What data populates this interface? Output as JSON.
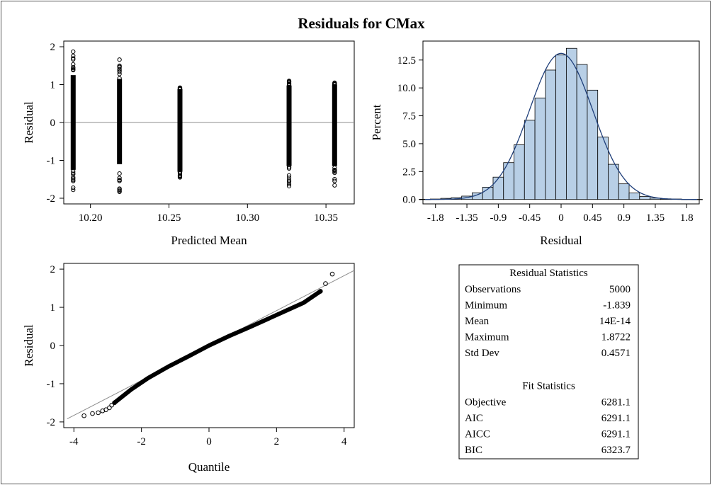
{
  "title": "Residuals for CMax",
  "colors": {
    "bar_fill": "#b8cfe6",
    "curve": "#1f3f7a",
    "refline": "#8c8c8c",
    "marker": "#000000"
  },
  "chart_data": [
    {
      "type": "scatter",
      "xlabel": "Predicted Mean",
      "ylabel": "Residual",
      "xlim": [
        10.183,
        10.368
      ],
      "ylim": [
        -2.15,
        2.15
      ],
      "xticks": [
        "10.20",
        "10.25",
        "10.30",
        "10.35"
      ],
      "yticks": [
        "-2",
        "-1",
        "0",
        "1",
        "2"
      ],
      "reference_line": {
        "y": 0
      },
      "groups": [
        {
          "x": 10.189,
          "min": -1.78,
          "max": 1.87,
          "band_low": -1.25,
          "band_high": 1.25
        },
        {
          "x": 10.2185,
          "min": -1.83,
          "max": 1.66,
          "band_low": -1.1,
          "band_high": 1.15
        },
        {
          "x": 10.257,
          "min": -1.45,
          "max": 0.92,
          "band_low": -1.3,
          "band_high": 0.88
        },
        {
          "x": 10.3265,
          "min": -1.68,
          "max": 1.1,
          "band_low": -1.15,
          "band_high": 0.98
        },
        {
          "x": 10.3555,
          "min": -1.66,
          "max": 1.05,
          "band_low": -1.15,
          "band_high": 1.0
        }
      ]
    },
    {
      "type": "bar",
      "subtype": "histogram",
      "xlabel": "Residual",
      "ylabel": "Percent",
      "xlim": [
        -1.98,
        1.98
      ],
      "ylim": [
        -0.4,
        14.2
      ],
      "xticks": [
        "-1.8",
        "-1.35",
        "-0.9",
        "-0.45",
        "0",
        "0.45",
        "0.9",
        "1.35",
        "1.8"
      ],
      "yticks": [
        "0.0",
        "2.5",
        "5.0",
        "7.5",
        "10.0",
        "12.5"
      ],
      "bin_width": 0.15,
      "bin_centers": [
        -1.95,
        -1.8,
        -1.65,
        -1.5,
        -1.35,
        -1.2,
        -1.05,
        -0.9,
        -0.75,
        -0.6,
        -0.45,
        -0.3,
        -0.15,
        0.0,
        0.15,
        0.3,
        0.45,
        0.6,
        0.75,
        0.9,
        1.05,
        1.2,
        1.35,
        1.5,
        1.65,
        1.8,
        1.95
      ],
      "values": [
        0.02,
        0.04,
        0.1,
        0.16,
        0.3,
        0.6,
        1.1,
        2.0,
        3.3,
        4.9,
        7.1,
        9.1,
        11.6,
        12.95,
        13.55,
        12.1,
        9.8,
        5.6,
        3.15,
        1.4,
        0.58,
        0.26,
        0.12,
        0.06,
        0.04,
        0.02,
        0.01
      ],
      "density_curve": {
        "type": "normal",
        "mean": 0,
        "std": 0.4571,
        "peak_percent": 13.1
      }
    },
    {
      "type": "scatter",
      "subtype": "qq",
      "xlabel": "Quantile",
      "ylabel": "Residual",
      "xlim": [
        -4.3,
        4.3
      ],
      "ylim": [
        -2.15,
        2.15
      ],
      "xticks": [
        "-4",
        "-2",
        "0",
        "2",
        "4"
      ],
      "yticks": [
        "-2",
        "-1",
        "0",
        "1",
        "2"
      ],
      "reference_line": {
        "intercept": 0,
        "slope": 0.4571
      },
      "tail_points": [
        {
          "x": -3.7,
          "y": -1.839
        },
        {
          "x": -3.45,
          "y": -1.78
        },
        {
          "x": -3.28,
          "y": -1.76
        },
        {
          "x": -3.15,
          "y": -1.71
        },
        {
          "x": -3.05,
          "y": -1.68
        },
        {
          "x": -2.95,
          "y": -1.63
        },
        {
          "x": -2.88,
          "y": -1.56
        },
        {
          "x": -2.8,
          "y": -1.5
        },
        {
          "x": 3.3,
          "y": 1.42
        },
        {
          "x": 3.45,
          "y": 1.62
        },
        {
          "x": 3.65,
          "y": 1.87
        }
      ],
      "line_points": [
        {
          "x": -2.8,
          "y": -1.5
        },
        {
          "x": -2.3,
          "y": -1.15
        },
        {
          "x": -1.8,
          "y": -0.85
        },
        {
          "x": -1.2,
          "y": -0.55
        },
        {
          "x": -0.6,
          "y": -0.28
        },
        {
          "x": 0,
          "y": 0.0
        },
        {
          "x": 0.6,
          "y": 0.25
        },
        {
          "x": 1.2,
          "y": 0.48
        },
        {
          "x": 1.8,
          "y": 0.72
        },
        {
          "x": 2.3,
          "y": 0.92
        },
        {
          "x": 2.8,
          "y": 1.12
        },
        {
          "x": 3.3,
          "y": 1.42
        }
      ]
    },
    {
      "type": "table",
      "sections": [
        {
          "header": "Residual Statistics",
          "rows": [
            {
              "label": "Observations",
              "value": "5000"
            },
            {
              "label": "Minimum",
              "value": "-1.839"
            },
            {
              "label": "Mean",
              "value": "14E-14"
            },
            {
              "label": "Maximum",
              "value": "1.8722"
            },
            {
              "label": "Std Dev",
              "value": "0.4571"
            }
          ]
        },
        {
          "header": "Fit Statistics",
          "rows": [
            {
              "label": "Objective",
              "value": "6281.1"
            },
            {
              "label": "AIC",
              "value": "6291.1"
            },
            {
              "label": "AICC",
              "value": "6291.1"
            },
            {
              "label": "BIC",
              "value": "6323.7"
            }
          ]
        }
      ]
    }
  ]
}
